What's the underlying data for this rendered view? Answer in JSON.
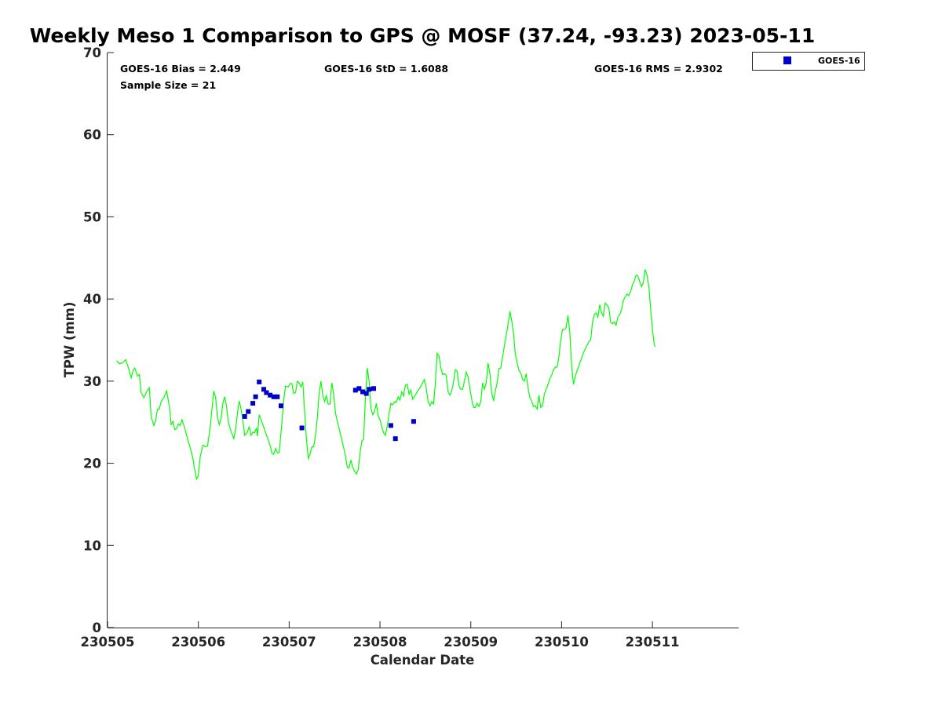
{
  "chart_data": {
    "type": "scatter",
    "title": "Weekly Meso 1 Comparison to GPS @ MOSF (37.24, -93.23) 2023-05-11",
    "xlabel": "Calendar Date",
    "ylabel": "TPW (mm)",
    "xlim": [
      230505.0,
      230511.95
    ],
    "ylim": [
      0,
      70
    ],
    "x_ticks": [
      "230505",
      "230506",
      "230507",
      "230508",
      "230509",
      "230510",
      "230511"
    ],
    "y_ticks": [
      "0",
      "10",
      "20",
      "30",
      "40",
      "50",
      "60",
      "70"
    ],
    "grid": false,
    "legend_placement": "top-right-outside",
    "stats": {
      "bias": "GOES-16 Bias = 2.449",
      "std": "GOES-16 StD = 1.6088",
      "rms": "GOES-16 RMS = 2.9302",
      "sample": "Sample Size = 21"
    },
    "colors": {
      "gps": "#00ff00",
      "goes": "#0000cc"
    },
    "series": [
      {
        "kind": "line",
        "points": [
          [
            0.1,
            32.5
          ],
          [
            0.13,
            32.1
          ],
          [
            0.16,
            32.2
          ],
          [
            0.2,
            32.6
          ],
          [
            0.23,
            31.6
          ],
          [
            0.26,
            30.4
          ],
          [
            0.28,
            31.3
          ],
          [
            0.3,
            31.6
          ],
          [
            0.33,
            30.6
          ],
          [
            0.35,
            30.8
          ],
          [
            0.37,
            28.6
          ],
          [
            0.4,
            28.0
          ],
          [
            0.43,
            28.7
          ],
          [
            0.46,
            29.2
          ],
          [
            0.48,
            25.7
          ],
          [
            0.51,
            24.6
          ],
          [
            0.53,
            25.2
          ],
          [
            0.55,
            26.6
          ],
          [
            0.57,
            26.6
          ],
          [
            0.59,
            27.5
          ],
          [
            0.62,
            28.0
          ],
          [
            0.65,
            28.8
          ],
          [
            0.68,
            27.0
          ],
          [
            0.7,
            24.7
          ],
          [
            0.72,
            25.1
          ],
          [
            0.74,
            24.1
          ],
          [
            0.76,
            24.2
          ],
          [
            0.78,
            24.8
          ],
          [
            0.8,
            24.6
          ],
          [
            0.82,
            25.3
          ],
          [
            0.85,
            24.3
          ],
          [
            0.88,
            23.0
          ],
          [
            0.91,
            21.9
          ],
          [
            0.94,
            20.6
          ],
          [
            0.96,
            19.2
          ],
          [
            0.98,
            18.1
          ],
          [
            1.0,
            18.5
          ],
          [
            1.02,
            20.8
          ],
          [
            1.05,
            22.2
          ],
          [
            1.08,
            22.0
          ],
          [
            1.1,
            22.1
          ],
          [
            1.13,
            24.3
          ],
          [
            1.15,
            26.6
          ],
          [
            1.17,
            28.8
          ],
          [
            1.19,
            28.0
          ],
          [
            1.21,
            25.6
          ],
          [
            1.23,
            24.7
          ],
          [
            1.25,
            25.4
          ],
          [
            1.27,
            27.3
          ],
          [
            1.29,
            28.1
          ],
          [
            1.31,
            27.0
          ],
          [
            1.33,
            25.0
          ],
          [
            1.36,
            23.9
          ],
          [
            1.39,
            23.0
          ],
          [
            1.41,
            24.1
          ],
          [
            1.43,
            26.0
          ],
          [
            1.45,
            27.6
          ],
          [
            1.47,
            26.6
          ],
          [
            1.49,
            25.2
          ],
          [
            1.51,
            23.4
          ],
          [
            1.54,
            23.8
          ],
          [
            1.56,
            24.5
          ],
          [
            1.58,
            23.4
          ],
          [
            1.6,
            23.8
          ],
          [
            1.62,
            23.7
          ],
          [
            1.64,
            24.3
          ],
          [
            1.65,
            23.3
          ],
          [
            1.67,
            25.9
          ],
          [
            1.7,
            25.0
          ],
          [
            1.73,
            24.1
          ],
          [
            1.76,
            23.1
          ],
          [
            1.79,
            22.2
          ],
          [
            1.81,
            21.2
          ],
          [
            1.83,
            21.1
          ],
          [
            1.85,
            21.8
          ],
          [
            1.87,
            21.3
          ],
          [
            1.89,
            21.3
          ],
          [
            1.92,
            24.9
          ],
          [
            1.94,
            27.7
          ],
          [
            1.96,
            29.4
          ],
          [
            1.99,
            29.3
          ],
          [
            2.01,
            29.7
          ],
          [
            2.03,
            29.7
          ],
          [
            2.05,
            28.5
          ],
          [
            2.07,
            28.6
          ],
          [
            2.09,
            30.0
          ],
          [
            2.11,
            29.8
          ],
          [
            2.13,
            29.3
          ],
          [
            2.15,
            29.9
          ],
          [
            2.17,
            26.4
          ],
          [
            2.19,
            23.0
          ],
          [
            2.21,
            20.6
          ],
          [
            2.23,
            21.1
          ],
          [
            2.25,
            22.0
          ],
          [
            2.27,
            22.0
          ],
          [
            2.29,
            23.4
          ],
          [
            2.31,
            25.5
          ],
          [
            2.33,
            28.5
          ],
          [
            2.35,
            30.0
          ],
          [
            2.37,
            28.3
          ],
          [
            2.39,
            27.5
          ],
          [
            2.41,
            28.2
          ],
          [
            2.43,
            27.2
          ],
          [
            2.45,
            27.2
          ],
          [
            2.47,
            29.8
          ],
          [
            2.49,
            28.4
          ],
          [
            2.51,
            26.1
          ],
          [
            2.53,
            25.1
          ],
          [
            2.56,
            23.8
          ],
          [
            2.59,
            22.4
          ],
          [
            2.62,
            20.9
          ],
          [
            2.64,
            19.5
          ],
          [
            2.66,
            19.4
          ],
          [
            2.68,
            20.4
          ],
          [
            2.7,
            19.5
          ],
          [
            2.72,
            19.0
          ],
          [
            2.74,
            18.7
          ],
          [
            2.76,
            19.2
          ],
          [
            2.78,
            21.2
          ],
          [
            2.8,
            22.7
          ],
          [
            2.82,
            22.9
          ],
          [
            2.84,
            28.0
          ],
          [
            2.86,
            31.6
          ],
          [
            2.88,
            30.0
          ],
          [
            2.9,
            26.7
          ],
          [
            2.92,
            25.9
          ],
          [
            2.94,
            26.3
          ],
          [
            2.96,
            27.3
          ],
          [
            2.98,
            25.8
          ],
          [
            3.0,
            25.3
          ],
          [
            3.02,
            24.4
          ],
          [
            3.04,
            23.7
          ],
          [
            3.06,
            23.4
          ],
          [
            3.08,
            24.5
          ],
          [
            3.1,
            26.0
          ],
          [
            3.12,
            27.3
          ],
          [
            3.14,
            27.1
          ],
          [
            3.16,
            27.5
          ],
          [
            3.18,
            27.4
          ],
          [
            3.2,
            28.1
          ],
          [
            3.22,
            27.7
          ],
          [
            3.24,
            28.7
          ],
          [
            3.26,
            28.2
          ],
          [
            3.28,
            29.5
          ],
          [
            3.3,
            29.6
          ],
          [
            3.32,
            28.4
          ],
          [
            3.34,
            28.9
          ],
          [
            3.36,
            27.8
          ],
          [
            3.4,
            28.5
          ],
          [
            3.44,
            29.2
          ],
          [
            3.47,
            29.8
          ],
          [
            3.49,
            30.2
          ],
          [
            3.51,
            29.1
          ],
          [
            3.53,
            27.5
          ],
          [
            3.55,
            27.0
          ],
          [
            3.57,
            27.5
          ],
          [
            3.59,
            27.2
          ],
          [
            3.61,
            29.7
          ],
          [
            3.63,
            33.4
          ],
          [
            3.65,
            33.1
          ],
          [
            3.67,
            31.6
          ],
          [
            3.69,
            30.8
          ],
          [
            3.71,
            30.9
          ],
          [
            3.73,
            30.7
          ],
          [
            3.75,
            28.7
          ],
          [
            3.77,
            28.3
          ],
          [
            3.79,
            28.8
          ],
          [
            3.81,
            29.9
          ],
          [
            3.83,
            31.4
          ],
          [
            3.85,
            31.2
          ],
          [
            3.87,
            29.4
          ],
          [
            3.89,
            29.0
          ],
          [
            3.91,
            29.0
          ],
          [
            3.93,
            30.0
          ],
          [
            3.95,
            31.1
          ],
          [
            3.97,
            30.5
          ],
          [
            3.99,
            29.1
          ],
          [
            4.01,
            27.8
          ],
          [
            4.03,
            26.8
          ],
          [
            4.05,
            26.8
          ],
          [
            4.07,
            27.3
          ],
          [
            4.09,
            26.9
          ],
          [
            4.11,
            27.5
          ],
          [
            4.13,
            29.8
          ],
          [
            4.15,
            29.0
          ],
          [
            4.17,
            29.8
          ],
          [
            4.19,
            32.2
          ],
          [
            4.21,
            31.0
          ],
          [
            4.23,
            28.6
          ],
          [
            4.25,
            27.6
          ],
          [
            4.27,
            28.8
          ],
          [
            4.29,
            29.8
          ],
          [
            4.31,
            31.5
          ],
          [
            4.33,
            31.6
          ],
          [
            4.35,
            32.9
          ],
          [
            4.37,
            34.3
          ],
          [
            4.39,
            35.6
          ],
          [
            4.41,
            36.9
          ],
          [
            4.43,
            38.5
          ],
          [
            4.45,
            37.4
          ],
          [
            4.47,
            35.9
          ],
          [
            4.49,
            33.3
          ],
          [
            4.51,
            32.3
          ],
          [
            4.53,
            31.3
          ],
          [
            4.55,
            31.0
          ],
          [
            4.57,
            30.2
          ],
          [
            4.59,
            30.0
          ],
          [
            4.61,
            30.9
          ],
          [
            4.63,
            29.2
          ],
          [
            4.65,
            28.0
          ],
          [
            4.67,
            27.6
          ],
          [
            4.69,
            26.9
          ],
          [
            4.71,
            27.0
          ],
          [
            4.73,
            26.6
          ],
          [
            4.75,
            28.3
          ],
          [
            4.77,
            26.8
          ],
          [
            4.79,
            27.0
          ],
          [
            4.81,
            28.4
          ],
          [
            4.83,
            29.0
          ],
          [
            4.85,
            29.6
          ],
          [
            4.87,
            30.3
          ],
          [
            4.89,
            30.7
          ],
          [
            4.91,
            31.4
          ],
          [
            4.93,
            31.7
          ],
          [
            4.95,
            31.7
          ],
          [
            4.97,
            32.9
          ],
          [
            4.99,
            35.0
          ],
          [
            5.01,
            36.3
          ],
          [
            5.03,
            36.3
          ],
          [
            5.05,
            36.5
          ],
          [
            5.07,
            38.0
          ],
          [
            5.09,
            36.0
          ],
          [
            5.11,
            32.0
          ],
          [
            5.13,
            29.6
          ],
          [
            5.15,
            30.6
          ],
          [
            5.2,
            32.2
          ],
          [
            5.25,
            33.7
          ],
          [
            5.3,
            34.8
          ],
          [
            5.32,
            35.0
          ],
          [
            5.34,
            37.1
          ],
          [
            5.36,
            38.1
          ],
          [
            5.38,
            38.3
          ],
          [
            5.4,
            37.8
          ],
          [
            5.42,
            39.3
          ],
          [
            5.44,
            38.3
          ],
          [
            5.46,
            37.9
          ],
          [
            5.48,
            39.5
          ],
          [
            5.5,
            39.3
          ],
          [
            5.52,
            38.9
          ],
          [
            5.54,
            37.2
          ],
          [
            5.56,
            37.0
          ],
          [
            5.58,
            37.2
          ],
          [
            5.6,
            36.8
          ],
          [
            5.62,
            37.8
          ],
          [
            5.64,
            38.1
          ],
          [
            5.66,
            38.7
          ],
          [
            5.68,
            39.8
          ],
          [
            5.7,
            40.3
          ],
          [
            5.72,
            40.6
          ],
          [
            5.74,
            40.4
          ],
          [
            5.76,
            40.9
          ],
          [
            5.78,
            41.7
          ],
          [
            5.8,
            42.2
          ],
          [
            5.82,
            42.9
          ],
          [
            5.84,
            42.8
          ],
          [
            5.86,
            42.1
          ],
          [
            5.88,
            41.5
          ],
          [
            5.9,
            42.0
          ],
          [
            5.92,
            43.6
          ],
          [
            5.94,
            42.9
          ],
          [
            5.96,
            41.6
          ],
          [
            5.98,
            38.8
          ],
          [
            6.0,
            36.3
          ],
          [
            6.02,
            34.5
          ],
          [
            6.03,
            34.2
          ]
        ]
      },
      {
        "name": "GOES-16",
        "kind": "scatter",
        "points": [
          [
            1.51,
            25.7
          ],
          [
            1.55,
            26.3
          ],
          [
            1.6,
            27.3
          ],
          [
            1.63,
            28.1
          ],
          [
            1.67,
            29.9
          ],
          [
            1.72,
            29.0
          ],
          [
            1.75,
            28.6
          ],
          [
            1.79,
            28.3
          ],
          [
            1.83,
            28.1
          ],
          [
            1.87,
            28.1
          ],
          [
            1.91,
            27.0
          ],
          [
            2.14,
            24.3
          ],
          [
            2.73,
            28.9
          ],
          [
            2.77,
            29.1
          ],
          [
            2.81,
            28.7
          ],
          [
            2.85,
            28.5
          ],
          [
            2.88,
            29.0
          ],
          [
            2.93,
            29.1
          ],
          [
            3.12,
            24.6
          ],
          [
            3.17,
            23.0
          ],
          [
            3.37,
            25.1
          ]
        ]
      }
    ]
  }
}
